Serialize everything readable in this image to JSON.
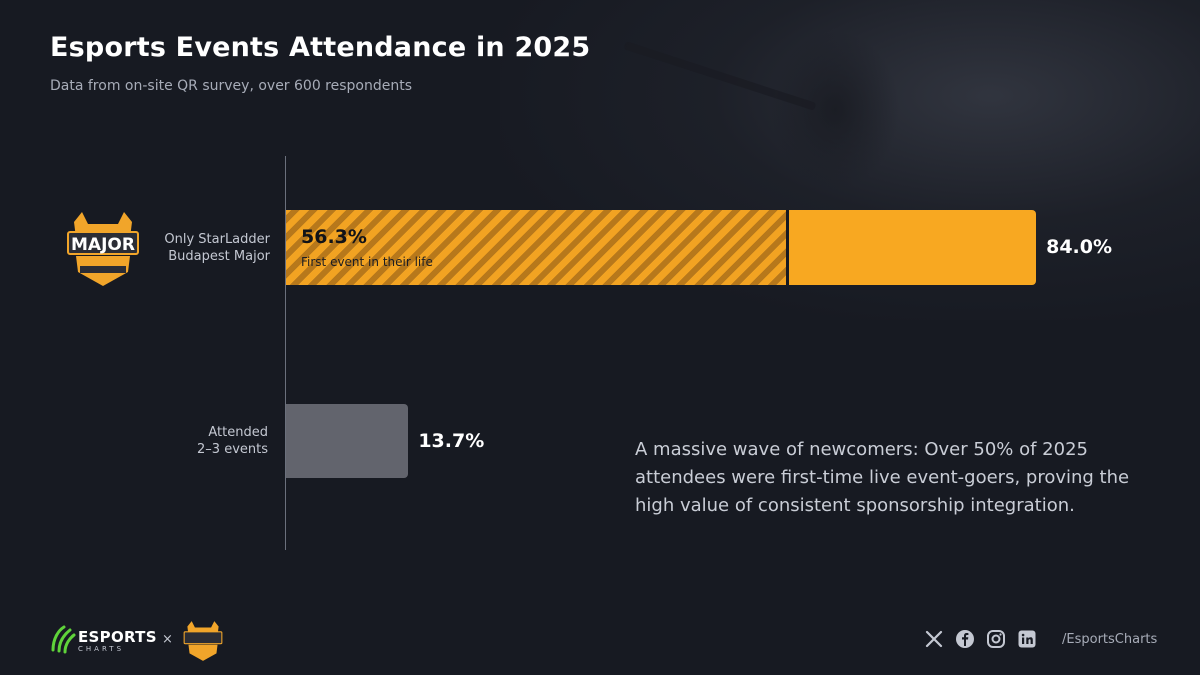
{
  "title": "Esports Events Attendance in 2025",
  "subtitle": "Data from on-site QR survey, over 600 respondents",
  "chart_data": {
    "type": "bar",
    "orientation": "horizontal",
    "categories": [
      {
        "line1": "Only StarLadder",
        "line2": "Budapest Major"
      },
      {
        "line1": "Attended",
        "line2": "2–3 events"
      }
    ],
    "values": [
      84.0,
      13.7
    ],
    "value_labels": [
      "84.0%",
      "13.7%"
    ],
    "colors": [
      "#f8a821",
      "#62646d"
    ],
    "sub_segment": {
      "category_index": 0,
      "value": 56.3,
      "value_label": "56.3%",
      "caption": "First event in their life"
    },
    "xlim": [
      0,
      100
    ],
    "grid": false
  },
  "annotation": "A massive wave of newcomers: Over 50% of 2025 attendees were first-time live event-goers, proving the high value of consistent sponsorship integration.",
  "footer": {
    "brand": "ESPORTS",
    "brand_sub": "CHARTS",
    "times": "×",
    "logo_text": "MAJOR",
    "icons": [
      "x-icon",
      "facebook-icon",
      "instagram-icon",
      "linkedin-icon"
    ],
    "handle": "/EsportsCharts"
  }
}
